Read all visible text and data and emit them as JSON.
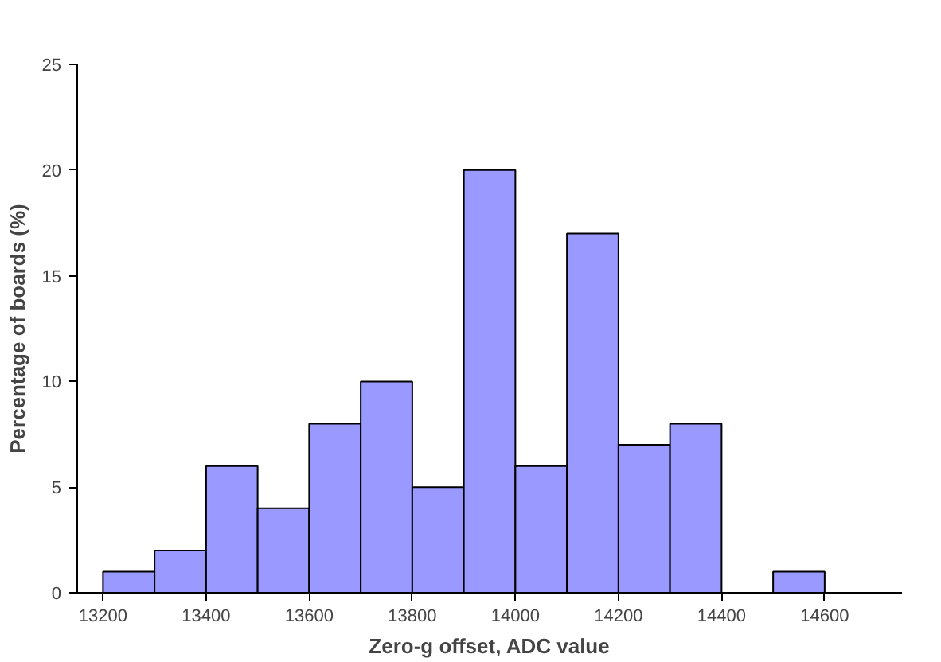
{
  "chart_data": {
    "type": "histogram",
    "xlabel": "Zero-g offset, ADC value",
    "ylabel": "Percentage of boards (%)",
    "bins": [
      13200,
      13300,
      13400,
      13500,
      13600,
      13700,
      13800,
      13900,
      14000,
      14100,
      14200,
      14300,
      14400,
      14500,
      14600
    ],
    "values": [
      1,
      2,
      6,
      4,
      8,
      10,
      5,
      20,
      6,
      17,
      7,
      8,
      0,
      1
    ],
    "color": "#9999ff",
    "xlim": [
      13150,
      14750
    ],
    "xticks": [
      13200,
      13400,
      13600,
      13800,
      14000,
      14200,
      14400,
      14600
    ],
    "ylim": [
      0,
      25
    ],
    "yticks": [
      0,
      5,
      10,
      15,
      20,
      25
    ],
    "grid": false
  }
}
